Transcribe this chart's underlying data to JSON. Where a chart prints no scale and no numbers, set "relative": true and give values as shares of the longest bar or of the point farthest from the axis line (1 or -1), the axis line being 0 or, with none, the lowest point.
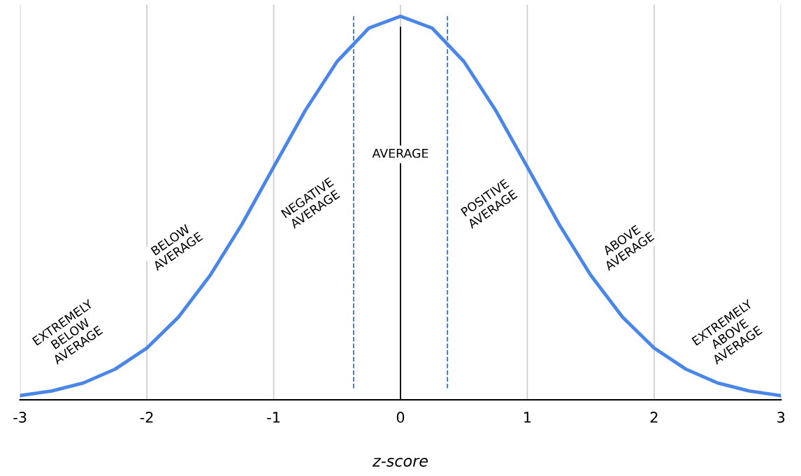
{
  "chart_data": {
    "type": "line",
    "relative": true,
    "xlabel": "z-score",
    "x": [
      -3,
      -2.75,
      -2.5,
      -2.25,
      -2,
      -1.75,
      -1.5,
      -1.25,
      -1,
      -0.75,
      -0.5,
      -0.25,
      0,
      0.25,
      0.5,
      0.75,
      1,
      1.25,
      1.5,
      1.75,
      2,
      2.25,
      2.5,
      2.75,
      3
    ],
    "series": [
      {
        "color": "#4a86e8",
        "values": [
          0.011,
          0.023,
          0.044,
          0.08,
          0.135,
          0.216,
          0.325,
          0.458,
          0.607,
          0.755,
          0.882,
          0.969,
          1,
          0.969,
          0.882,
          0.755,
          0.607,
          0.458,
          0.325,
          0.216,
          0.135,
          0.08,
          0.044,
          0.023,
          0.011
        ]
      }
    ],
    "xlim": [
      -3,
      3
    ],
    "xticks": [
      -3,
      -2,
      -1,
      0,
      1,
      2,
      3
    ],
    "grid": "x",
    "marker": "none",
    "line_style": "solid",
    "ref_lines": [
      {
        "axis": "x",
        "value": 0,
        "color": "#000000",
        "line_style": "solid"
      },
      {
        "axis": "x",
        "value": -0.37,
        "color": "#3d6fc4",
        "line_style": "dashed"
      },
      {
        "axis": "x",
        "value": 0.37,
        "color": "#3d6fc4",
        "line_style": "dashed"
      }
    ],
    "annotations": [
      "EXTREMELY\nBELOW\nAVERAGE",
      "BELOW\nAVERAGE",
      "NEGATIVE\nAVERAGE",
      "AVERAGE",
      "POSITIVE\nAVERAGE",
      "ABOVE\nAVERAGE",
      "EXTREMELY\nABOVE\nAVERAGE"
    ]
  }
}
